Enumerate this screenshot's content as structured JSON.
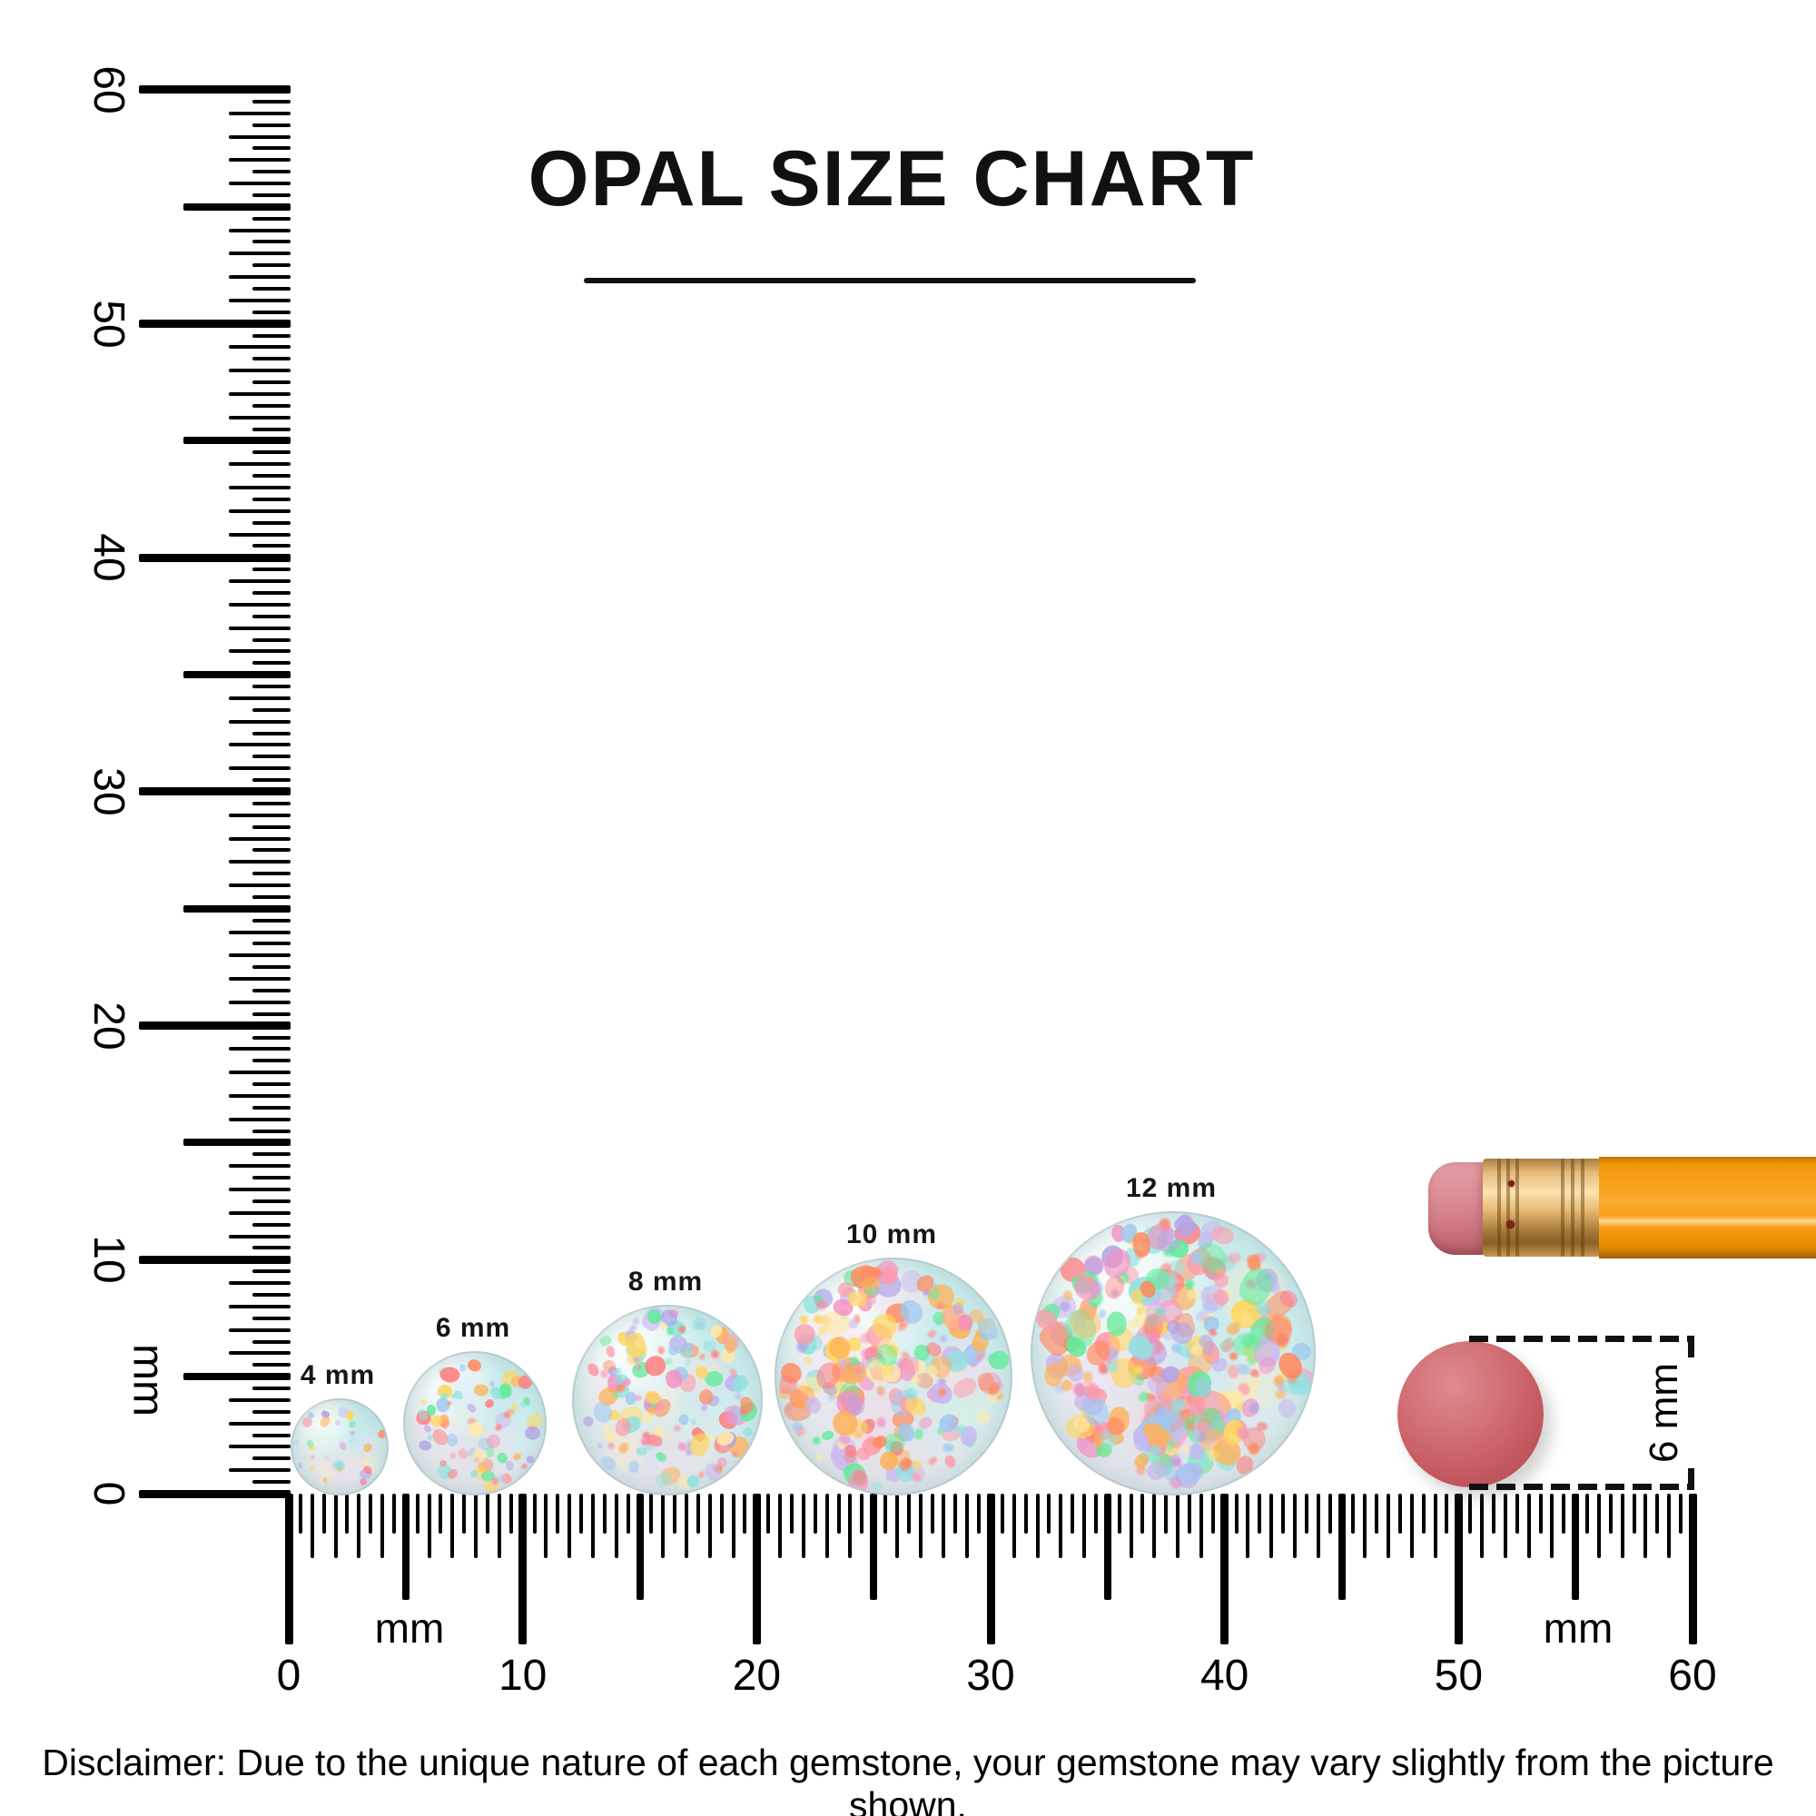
{
  "title": {
    "text": "OPAL SIZE CHART"
  },
  "rulers": {
    "vertical": {
      "unit": "mm",
      "min": 0,
      "max": 60,
      "tick_step_mm": 0.5,
      "tick_labels": [
        "0",
        "10",
        "20",
        "30",
        "40",
        "50",
        "60"
      ],
      "unit_label": "mm"
    },
    "horizontal": {
      "unit": "mm",
      "min": 0,
      "max": 60,
      "tick_step_mm": 0.5,
      "tick_labels": [
        "0",
        "10",
        "20",
        "30",
        "40",
        "50",
        "60"
      ],
      "unit_labels": [
        "mm",
        "mm"
      ]
    }
  },
  "opals": [
    {
      "label": "4 mm",
      "size_mm": 4
    },
    {
      "label": "6 mm",
      "size_mm": 6
    },
    {
      "label": "8 mm",
      "size_mm": 8
    },
    {
      "label": "10 mm",
      "size_mm": 10
    },
    {
      "label": "12 mm",
      "size_mm": 12
    }
  ],
  "comparison": {
    "disc_label": "6 mm",
    "disc_size_mm": 6,
    "pencil": "pencil with pink eraser"
  },
  "disclaimer": "Disclaimer: Due to the unique nature of each gemstone, your gemstone may vary slightly from the picture shown.",
  "colors": {
    "ink": "#000000",
    "disc": "#c95f65",
    "pencil_body": "#f8a01a",
    "pencil_ferrule": "#e5b979",
    "pencil_eraser": "#dd8f98",
    "opal_base": "#dff1ef",
    "opal_palette": [
      "#ffb157",
      "#ff8a5e",
      "#ff9aa8",
      "#b2a4e8",
      "#9fc9f2",
      "#63eb9b",
      "#ffd75e",
      "#f48fc0",
      "#8fe3de",
      "#ffe9a8",
      "#c9b6f0",
      "#ff7f7f"
    ]
  }
}
